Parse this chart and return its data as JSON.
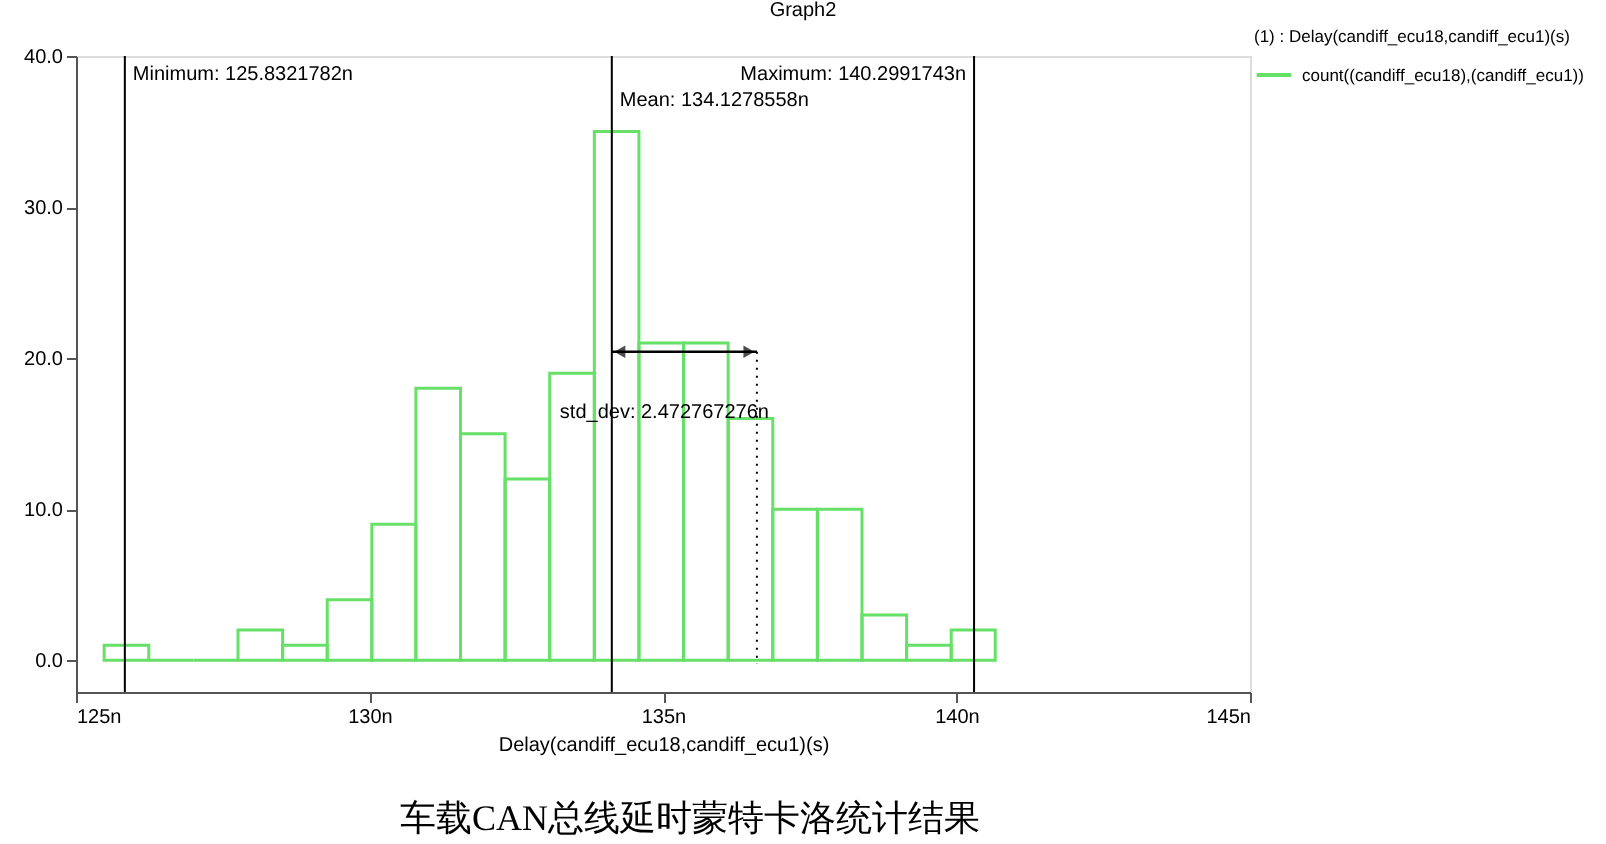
{
  "chart_data": {
    "type": "histogram",
    "title": "Graph2",
    "xlabel": "Delay(candiff_ecu18,candiff_ecu1)(s)",
    "legend_title": "(1) : Delay(candiff_ecu18,candiff_ecu1)(s)",
    "bins": [
      125.48,
      126.24,
      127.0,
      127.76,
      128.52,
      129.28,
      130.04,
      130.79,
      131.55,
      132.31,
      133.07,
      133.83,
      134.59,
      135.35,
      136.11,
      136.87,
      137.63,
      138.39,
      139.15,
      139.91,
      140.66
    ],
    "series": [
      {
        "name": "count((candiff_ecu18),(candiff_ecu1))",
        "color": "#66e066",
        "values": [
          1,
          0,
          0,
          2,
          1,
          4,
          9,
          18,
          15,
          12,
          19,
          35,
          21,
          21,
          16,
          10,
          10,
          3,
          1,
          2
        ]
      }
    ],
    "xlim": [
      125,
      145
    ],
    "xticks": [
      {
        "value": 125,
        "label": "125n"
      },
      {
        "value": 130,
        "label": "130n"
      },
      {
        "value": 135,
        "label": "135n"
      },
      {
        "value": 140,
        "label": "140n"
      },
      {
        "value": 145,
        "label": "145n"
      }
    ],
    "ylim": [
      -2.1,
      40
    ],
    "yticks": [
      {
        "value": 0,
        "label": "0.0"
      },
      {
        "value": 10,
        "label": "10.0"
      },
      {
        "value": 20,
        "label": "20.0"
      },
      {
        "value": 30,
        "label": "30.0"
      },
      {
        "value": 40,
        "label": "40.0"
      }
    ],
    "ref_lines": [
      {
        "axis": "x",
        "value": 125.8321782,
        "label": "Minimum: 125.8321782n",
        "color": "#000000"
      },
      {
        "axis": "x",
        "value": 134.1278558,
        "label": "Mean: 134.1278558n",
        "color": "#000000"
      },
      {
        "axis": "x",
        "value": 140.2991743,
        "label": "Maximum: 140.2991743n",
        "color": "#000000"
      },
      {
        "axis": "x",
        "value": 136.6,
        "color": "#000000",
        "line_style": "dotted"
      }
    ],
    "annotations": [
      "std_dev: 2.472767276n",
      "车载CAN总线延时蒙特卡洛统计结果"
    ],
    "grid": false,
    "legend": "top right"
  }
}
